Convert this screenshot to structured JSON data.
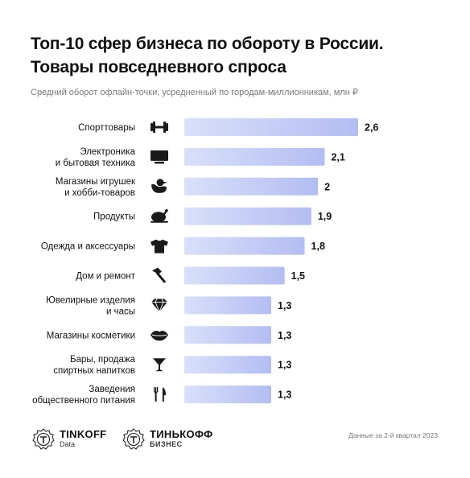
{
  "header": {
    "title": "Топ-10 сфер бизнеса по обороту в России. Товары повседневного спроса",
    "subtitle": "Средний оборот офлайн-точки, усредненный по городам-миллионникам, млн ₽"
  },
  "chart_data": {
    "type": "bar",
    "orientation": "horizontal",
    "title": "Топ-10 сфер бизнеса по обороту в России. Товары повседневного спроса",
    "subtitle": "Средний оборот офлайн-точки, усредненный по городам-миллионникам, млн ₽",
    "categories": [
      [
        "Спорттовары"
      ],
      [
        "Электроника",
        "и бытовая техника"
      ],
      [
        "Магазины игрушек",
        "и хобби-товаров"
      ],
      [
        "Продукты"
      ],
      [
        "Одежда и аксессуары"
      ],
      [
        "Дом и ремонт"
      ],
      [
        "Ювелирные изделия",
        "и часы"
      ],
      [
        "Магазины косметики"
      ],
      [
        "Бары, продажа",
        "спиртных напитков"
      ],
      [
        "Заведения",
        "общественного питания"
      ]
    ],
    "values": [
      2.6,
      2.1,
      2,
      1.9,
      1.8,
      1.5,
      1.3,
      1.3,
      1.3,
      1.3
    ],
    "value_labels": [
      "2,6",
      "2,1",
      "2",
      "1,9",
      "1,8",
      "1,5",
      "1,3",
      "1,3",
      "1,3",
      "1,3"
    ],
    "icons": [
      "dumbbell-icon",
      "tv-monitor-icon",
      "rubber-duck-icon",
      "roast-chicken-icon",
      "tshirt-icon",
      "hammer-icon",
      "diamond-icon",
      "lips-icon",
      "cocktail-glass-icon",
      "fork-knife-icon"
    ],
    "bar_gradient": [
      "#d9e0fa",
      "#b3bdf2"
    ],
    "xlim": [
      0,
      2.6
    ],
    "grid": false,
    "legend": "none"
  },
  "footer": {
    "note": "Данные за 2-й квартал 2023",
    "logo1_name": "TINKOFF",
    "logo1_sub": "Data",
    "logo2_name": "ТИНЬКОФФ",
    "logo2_sub": "БИЗНЕС"
  }
}
